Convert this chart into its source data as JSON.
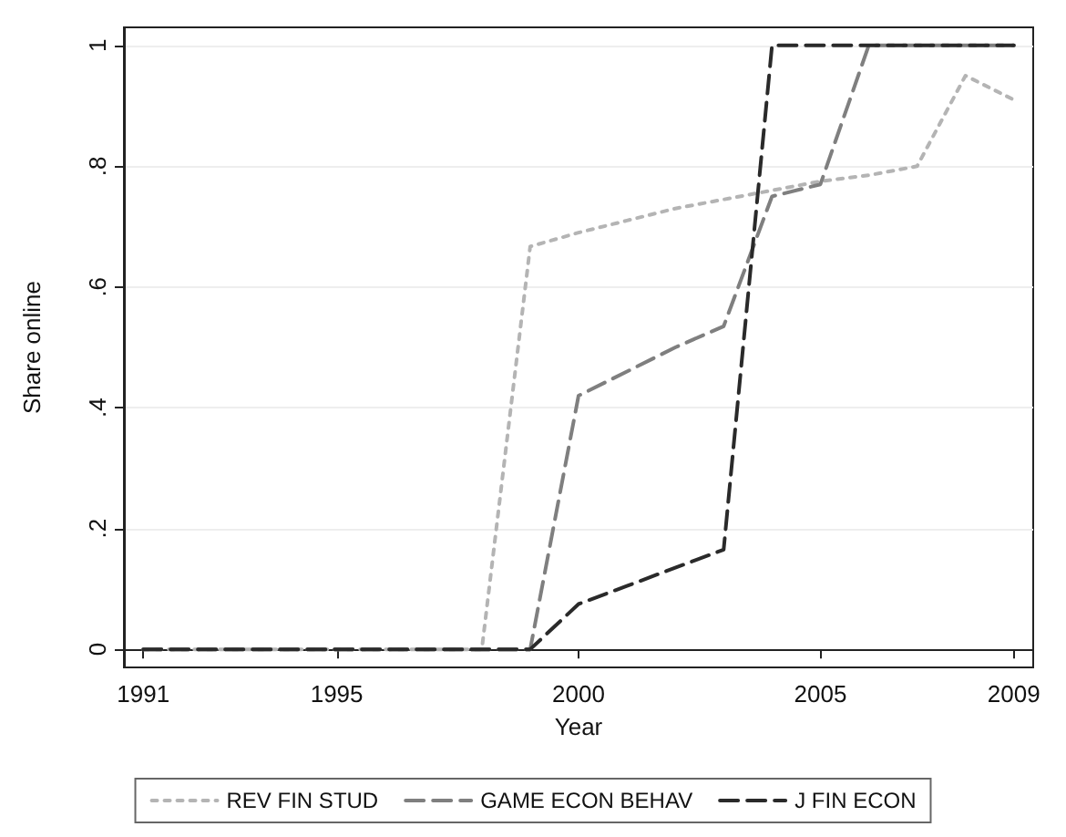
{
  "chart_data": {
    "type": "line",
    "xlabel": "Year",
    "ylabel": "Share online",
    "x": [
      1991,
      1992,
      1993,
      1994,
      1995,
      1996,
      1997,
      1998,
      1999,
      2000,
      2001,
      2002,
      2003,
      2004,
      2005,
      2006,
      2007,
      2008,
      2009
    ],
    "series": [
      {
        "name": "REV FIN STUD",
        "color": "#b4b4b4",
        "line_style": "dotted",
        "values": [
          0,
          0,
          0,
          0,
          0,
          0,
          0,
          0,
          0.667,
          0.69,
          0.71,
          0.73,
          0.745,
          0.76,
          0.775,
          0.785,
          0.8,
          0.95,
          0.91
        ]
      },
      {
        "name": "GAME ECON BEHAV",
        "color": "#7f7f7f",
        "line_style": "dashed",
        "values": [
          0,
          0,
          0,
          0,
          0,
          0,
          0,
          0,
          0,
          0.42,
          0.46,
          0.5,
          0.535,
          0.75,
          0.77,
          1,
          1,
          1,
          1
        ]
      },
      {
        "name": "J FIN ECON",
        "color": "#2a2a2a",
        "line_style": "dashed",
        "values": [
          0,
          0,
          0,
          0,
          0,
          0,
          0,
          0,
          0,
          0.075,
          0.105,
          0.135,
          0.165,
          1,
          1,
          1,
          1,
          1,
          1
        ]
      }
    ],
    "xlim": [
      1990.6,
      2009.4
    ],
    "xticks": [
      1991,
      1995,
      2000,
      2005,
      2009
    ],
    "ylim": [
      -0.03,
      1.03
    ],
    "yticks": [
      0,
      {
        "value": 0.2,
        "label": ".2"
      },
      {
        "value": 0.4,
        "label": ".4"
      },
      {
        "value": 0.6,
        "label": ".6"
      },
      {
        "value": 0.8,
        "label": ".8"
      },
      1
    ],
    "grid": "y",
    "legend": "bottom",
    "marker": "none"
  }
}
